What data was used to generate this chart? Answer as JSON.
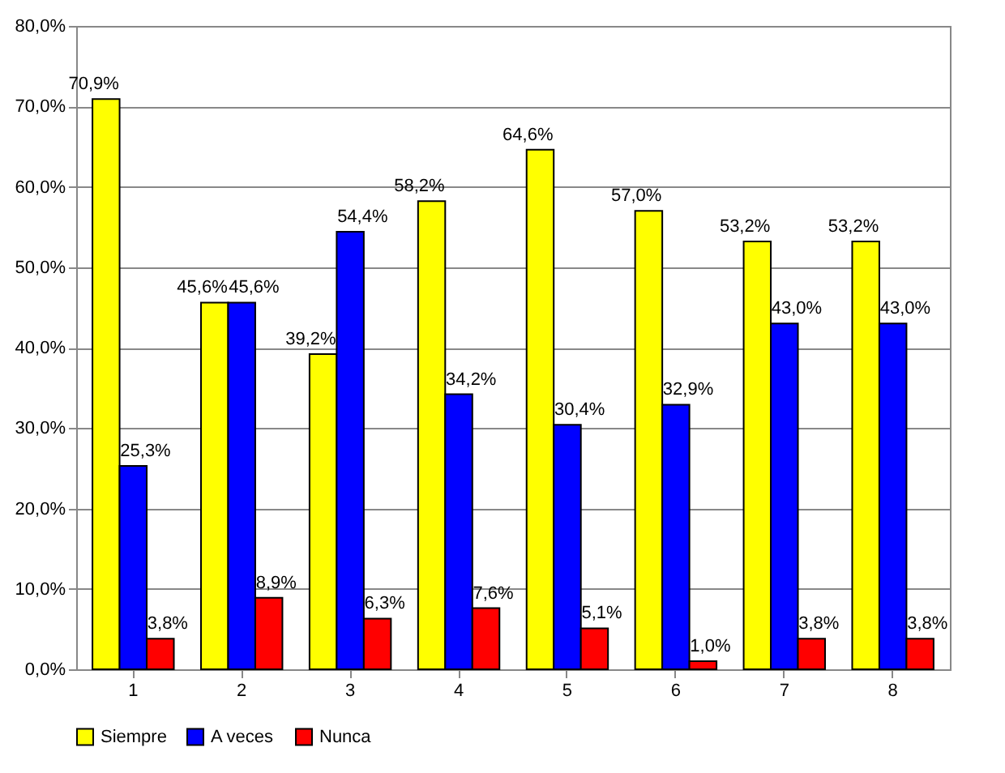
{
  "chart_data": {
    "type": "bar",
    "categories": [
      "1",
      "2",
      "3",
      "4",
      "5",
      "6",
      "7",
      "8"
    ],
    "series": [
      {
        "name": "Siempre",
        "color": "#ffff00",
        "values": [
          70.9,
          45.6,
          39.2,
          58.2,
          64.6,
          57.0,
          53.2,
          53.2
        ],
        "value_labels": [
          "70,9%",
          "45,6%",
          "39,2%",
          "58,2%",
          "64,6%",
          "57,0%",
          "53,2%",
          "53,2%"
        ]
      },
      {
        "name": "A veces",
        "color": "#0000ff",
        "values": [
          25.3,
          45.6,
          54.4,
          34.2,
          30.4,
          32.9,
          43.0,
          43.0
        ],
        "value_labels": [
          "25,3%",
          "45,6%",
          "54,4%",
          "34,2%",
          "30,4%",
          "32,9%",
          "43,0%",
          "43,0%"
        ]
      },
      {
        "name": "Nunca",
        "color": "#ff0000",
        "values": [
          3.8,
          8.9,
          6.3,
          7.6,
          5.1,
          1.0,
          3.8,
          3.8
        ],
        "value_labels": [
          "3,8%",
          "8,9%",
          "6,3%",
          "7,6%",
          "5,1%",
          "1,0%",
          "3,8%",
          "3,8%"
        ]
      }
    ],
    "ylim": [
      0,
      80
    ],
    "yticks": [
      {
        "value": 0,
        "label": "0,0%"
      },
      {
        "value": 10,
        "label": "10,0%"
      },
      {
        "value": 20,
        "label": "20,0%"
      },
      {
        "value": 30,
        "label": "30,0%"
      },
      {
        "value": 40,
        "label": "40,0%"
      },
      {
        "value": 50,
        "label": "50,0%"
      },
      {
        "value": 60,
        "label": "60,0%"
      },
      {
        "value": 70,
        "label": "70,0%"
      },
      {
        "value": 80,
        "label": "80,0%"
      }
    ],
    "grid": "y",
    "legend": "bottom"
  }
}
